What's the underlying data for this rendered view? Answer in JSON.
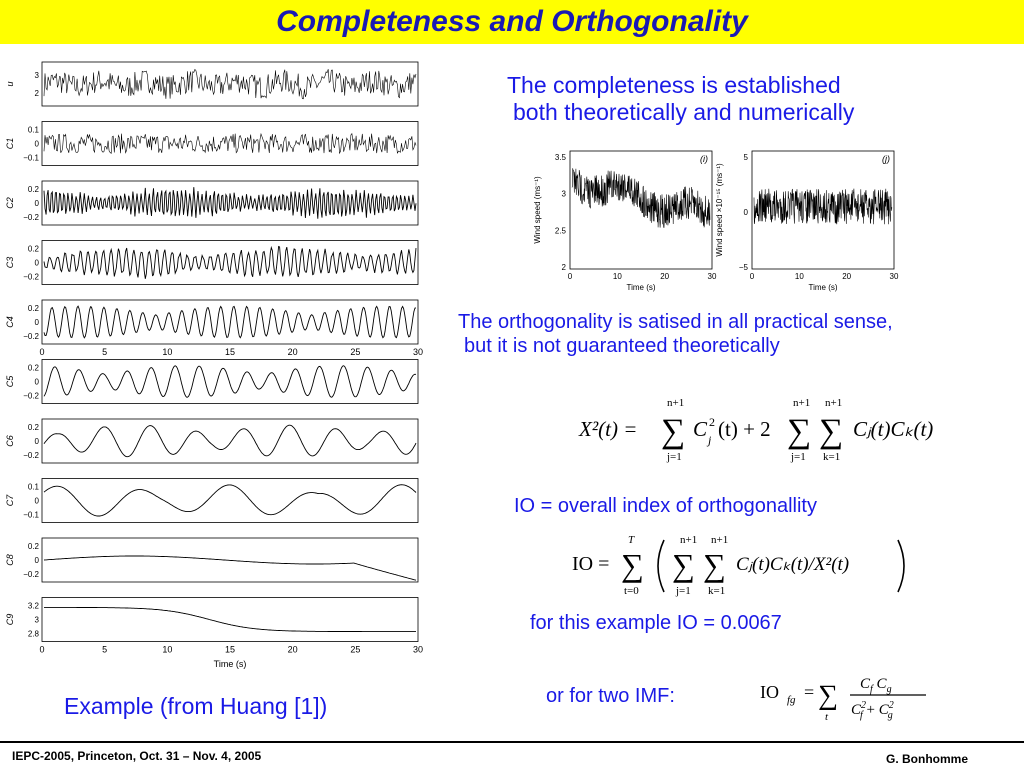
{
  "slide": {
    "title": "Completeness and Orthogonality",
    "completeness_text_line1": "The completeness is established",
    "completeness_text_line2": "both theoretically and numerically",
    "orthogonality_text_line1": "The orthogonality is satised in all practical sense,",
    "orthogonality_text_line2": "but it is not guaranteed theoretically",
    "io_definition": "IO = overall index of orthogonallity",
    "io_example": "for this example IO = 0.0067",
    "two_imf": "or for two IMF:",
    "example_caption": "Example (from Huang [1])",
    "footer_left": "IEPC-2005, Princeton, Oct. 31 – Nov. 4, 2005",
    "footer_right": "G. Bonhomme"
  },
  "colors": {
    "title_bg": "#ffff00",
    "title_text": "#1a1ab4",
    "body_text": "#1a1ae6"
  },
  "imf_figure": {
    "xlabel": "Time (s)",
    "xticks": [
      "0",
      "5",
      "10",
      "15",
      "20",
      "25",
      "30"
    ],
    "panels": [
      {
        "label": "u",
        "yticks": [
          "3",
          "2"
        ]
      },
      {
        "label": "C1",
        "yticks": [
          "0.1",
          "0",
          "−0.1"
        ]
      },
      {
        "label": "C2",
        "yticks": [
          "0.2",
          "0",
          "−0.2"
        ]
      },
      {
        "label": "C3",
        "yticks": [
          "0.2",
          "0",
          "−0.2"
        ]
      },
      {
        "label": "C4",
        "yticks": [
          "0.2",
          "0",
          "−0.2"
        ]
      },
      {
        "label": "C5",
        "yticks": [
          "0.2",
          "0",
          "−0.2"
        ]
      },
      {
        "label": "C6",
        "yticks": [
          "0.2",
          "0",
          "−0.2"
        ]
      },
      {
        "label": "C7",
        "yticks": [
          "0.1",
          "0",
          "−0.1"
        ]
      },
      {
        "label": "C8",
        "yticks": [
          "0.2",
          "0",
          "−0.2"
        ]
      },
      {
        "label": "C9",
        "yticks": [
          "3.2",
          "3",
          "2.8"
        ]
      }
    ]
  },
  "wind_figure_i": {
    "tag": "(i)",
    "ylabel": "Wind speed (ms⁻¹)",
    "xlabel": "Time (s)",
    "yticks": [
      "3.5",
      "3",
      "2.5",
      "2"
    ],
    "xticks": [
      "0",
      "10",
      "20",
      "30"
    ]
  },
  "wind_figure_j": {
    "tag": "(j)",
    "ylabel": "Wind speed ×10⁻¹⁵ (ms⁻¹)",
    "xlabel": "Time (s)",
    "yticks": [
      "5",
      "0",
      "−5"
    ],
    "xticks": [
      "0",
      "10",
      "20",
      "30"
    ]
  },
  "equations": {
    "x2_lhs": "X²(t) =",
    "x2_sum_top": "n+1",
    "x2_sum_bottom": "j=1",
    "x2_term1": "C",
    "x2_term1_sup": "2",
    "x2_term1_sub": "j",
    "x2_term1_tail": "(t) + 2",
    "x2_sum2_bottom": "j=1",
    "x2_sum3_bottom": "k=1",
    "x2_term2": "Cⱼ(t)Cₖ(t)",
    "io_lhs": "IO =",
    "io_sum_top": "T",
    "io_sum_bottom": "t=0",
    "io_inner": "Cⱼ(t)Cₖ(t)/X²(t)",
    "iofg_lhs": "IO",
    "iofg_sub": "fg",
    "iofg_eq": "=",
    "iofg_sum_bottom": "t",
    "iofg_num": "C_f C_g",
    "iofg_den": "C²_f + C²_g"
  }
}
